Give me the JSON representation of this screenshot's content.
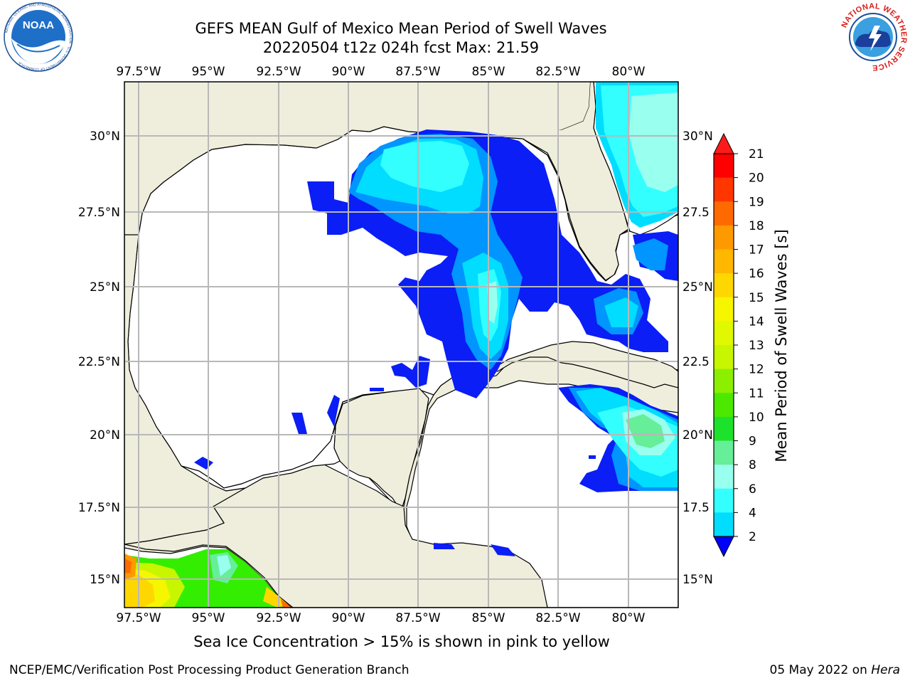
{
  "header": {
    "title_line1": "GEFS MEAN Gulf of Mexico Mean Period of Swell Waves",
    "title_line2": "20220504 t12z 024h fcst   Max: 21.59"
  },
  "logos": {
    "left": {
      "name": "noaa-logo",
      "text": "NOAA",
      "ring_text": "NATIONAL OCEANIC AND ATMOSPHERIC ADMINISTRATION · U.S. DEPARTMENT OF COMMERCE"
    },
    "right": {
      "name": "nws-logo",
      "ring_text": "NATIONAL WEATHER SERVICE"
    }
  },
  "map": {
    "longitude_labels": [
      "97.5°W",
      "95°W",
      "92.5°W",
      "90°W",
      "87.5°W",
      "85°W",
      "82.5°W",
      "80°W"
    ],
    "latitude_labels_left": [
      "30°N",
      "27.5°N",
      "25°N",
      "22.5°N",
      "20°N",
      "17.5°N",
      "15°N"
    ],
    "latitude_labels_right": [
      "30°N",
      "27.5",
      "25°N",
      "22.5",
      "20°N",
      "17.5",
      "15°N"
    ],
    "colors": {
      "land": "#efeedd",
      "ocean": "#ffffff",
      "grid": "#b8b8b8",
      "coast": "#000000"
    }
  },
  "colorbar": {
    "label": "Mean Period of Swell Waves [s]",
    "ticks": [
      "21",
      "20",
      "19",
      "18",
      "17",
      "16",
      "15",
      "14",
      "13",
      "12",
      "11",
      "10",
      "9",
      "8",
      "6",
      "4",
      "2"
    ],
    "colors_top_to_bottom": [
      "#fe0000",
      "#ff3600",
      "#ff6a00",
      "#ff9900",
      "#ffb700",
      "#ffd700",
      "#f6f600",
      "#e0f800",
      "#c7f600",
      "#8cef00",
      "#4de800",
      "#1de22c",
      "#66ee99",
      "#99ffee",
      "#33ffff",
      "#00ddff",
      "#00aaff",
      "#0066ff"
    ],
    "extend_top_color": "#ff1a1a",
    "extend_bottom_color": "#0000ff"
  },
  "footer": {
    "note": "Sea Ice Concentration > 15% is shown in pink to yellow",
    "credit_left": "NCEP/EMC/Verification Post Processing Product Generation Branch",
    "credit_date": "05 May 2022 on ",
    "credit_machine": "Hera"
  }
}
